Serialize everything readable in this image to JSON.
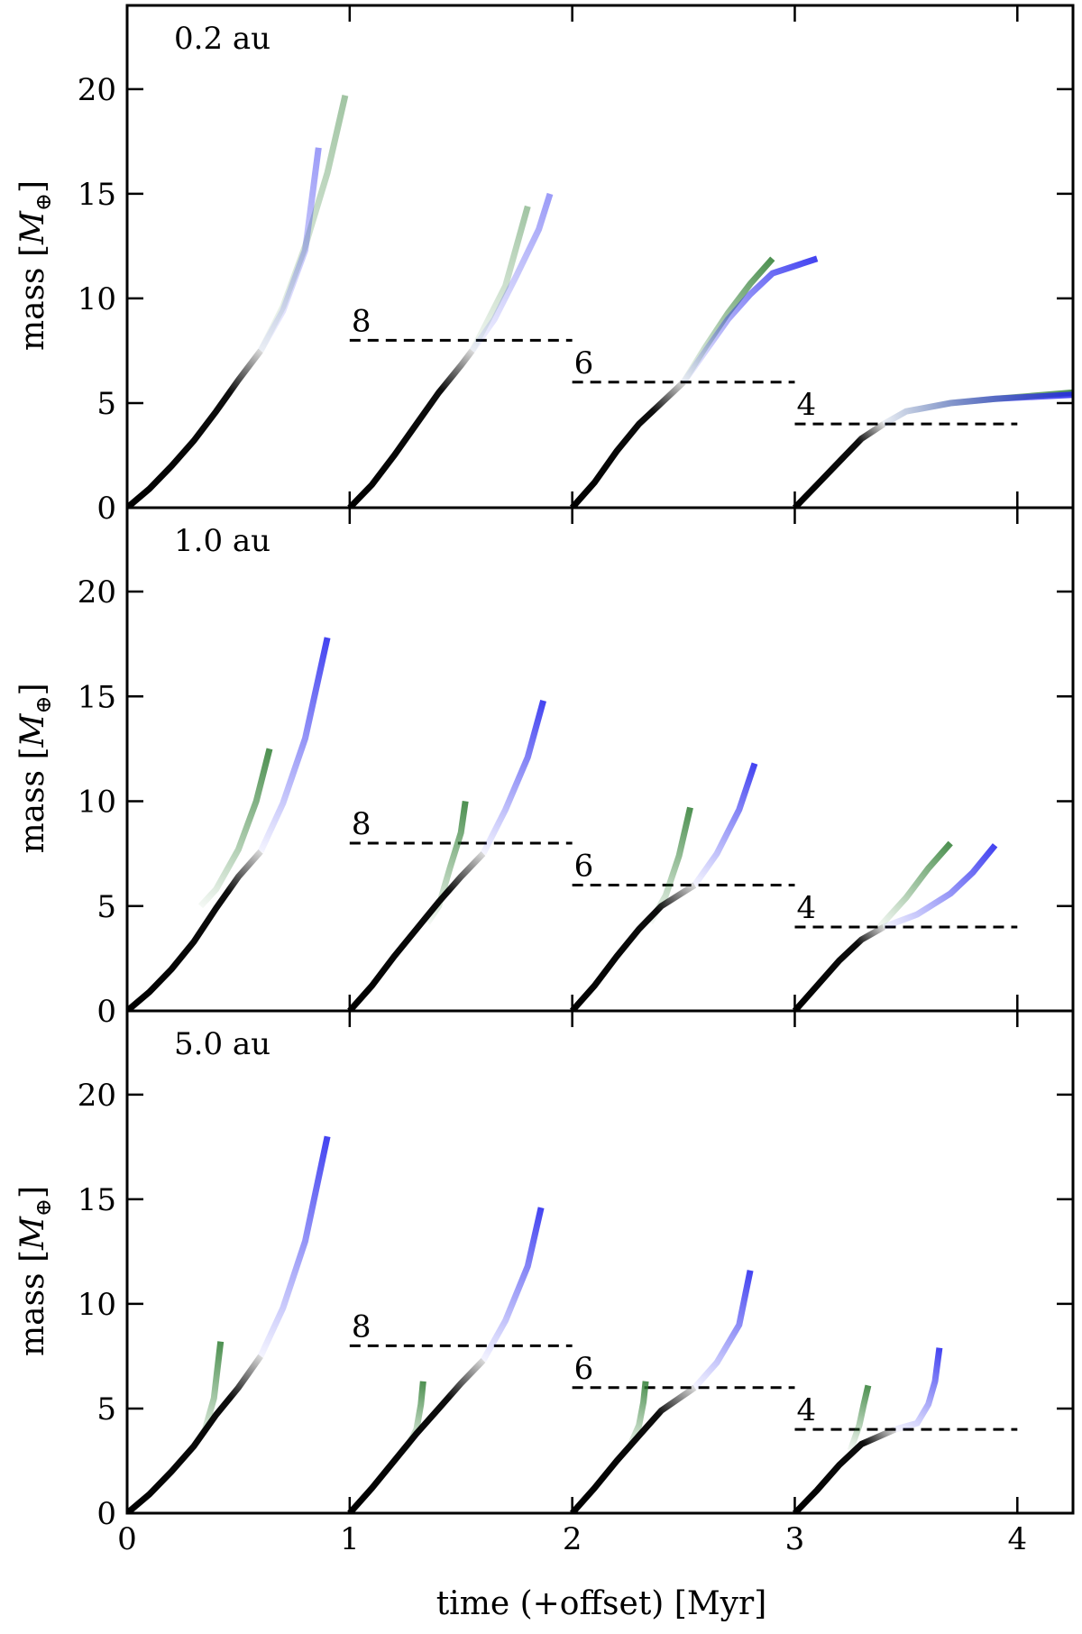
{
  "chart_data": {
    "type": "line",
    "xlabel": "time (+offset) [Myr]",
    "ylabel_prefix": "mass [",
    "ylabel_symbol": "M",
    "ylabel_subscript": "⊕",
    "ylabel_suffix": "]",
    "xlim": [
      0,
      4.25
    ],
    "ylim": [
      0,
      24
    ],
    "xticks": [
      "0",
      "1",
      "2",
      "3",
      "4"
    ],
    "yticks": [
      "0",
      "5",
      "10",
      "15",
      "20"
    ],
    "colors": {
      "core": "#000000",
      "green": "#2e7d32",
      "blue": "#2222ee",
      "threshold": "#000000"
    },
    "panels": [
      {
        "label": "0.2 au",
        "groups": [
          {
            "offset": 0,
            "threshold": null,
            "core": [
              [
                0,
                0
              ],
              [
                0.1,
                0.9
              ],
              [
                0.2,
                2.0
              ],
              [
                0.3,
                3.2
              ],
              [
                0.4,
                4.6
              ],
              [
                0.5,
                6.1
              ],
              [
                0.6,
                7.5
              ]
            ],
            "green": [
              [
                0.6,
                7.5
              ],
              [
                0.7,
                9.6
              ],
              [
                0.8,
                12.5
              ],
              [
                0.9,
                16.0
              ],
              [
                0.98,
                19.7
              ]
            ],
            "blue": [
              [
                0.6,
                7.5
              ],
              [
                0.7,
                9.4
              ],
              [
                0.8,
                12.3
              ],
              [
                0.86,
                17.2
              ]
            ]
          },
          {
            "offset": 1,
            "threshold": 8,
            "core": [
              [
                1.0,
                0
              ],
              [
                1.1,
                1.1
              ],
              [
                1.2,
                2.5
              ],
              [
                1.3,
                4.0
              ],
              [
                1.4,
                5.5
              ],
              [
                1.5,
                6.8
              ],
              [
                1.55,
                7.5
              ]
            ],
            "green": [
              [
                1.55,
                7.5
              ],
              [
                1.6,
                8.5
              ],
              [
                1.7,
                10.6
              ],
              [
                1.8,
                14.4
              ]
            ],
            "blue": [
              [
                1.55,
                7.5
              ],
              [
                1.65,
                9.0
              ],
              [
                1.75,
                11.1
              ],
              [
                1.85,
                13.3
              ],
              [
                1.9,
                15.0
              ]
            ]
          },
          {
            "offset": 2,
            "threshold": 6,
            "core": [
              [
                2.0,
                0
              ],
              [
                2.1,
                1.2
              ],
              [
                2.2,
                2.7
              ],
              [
                2.3,
                4.0
              ],
              [
                2.4,
                5.0
              ],
              [
                2.5,
                6.0
              ]
            ],
            "green": [
              [
                2.5,
                6.0
              ],
              [
                2.6,
                7.7
              ],
              [
                2.7,
                9.3
              ],
              [
                2.8,
                10.7
              ],
              [
                2.9,
                11.9
              ]
            ],
            "blue": [
              [
                2.5,
                6.0
              ],
              [
                2.6,
                7.5
              ],
              [
                2.7,
                9.0
              ],
              [
                2.8,
                10.2
              ],
              [
                2.9,
                11.2
              ],
              [
                3.1,
                11.9
              ]
            ]
          },
          {
            "offset": 3,
            "threshold": 4,
            "core": [
              [
                3.0,
                0
              ],
              [
                3.1,
                1.1
              ],
              [
                3.2,
                2.2
              ],
              [
                3.3,
                3.3
              ],
              [
                3.4,
                4.0
              ]
            ],
            "green": [
              [
                3.4,
                4.0
              ],
              [
                3.5,
                4.6
              ],
              [
                3.7,
                5.0
              ],
              [
                3.9,
                5.2
              ],
              [
                4.25,
                5.5
              ]
            ],
            "blue": [
              [
                3.4,
                4.0
              ],
              [
                3.5,
                4.6
              ],
              [
                3.7,
                5.0
              ],
              [
                3.9,
                5.2
              ],
              [
                4.25,
                5.4
              ]
            ]
          }
        ]
      },
      {
        "label": "1.0 au",
        "groups": [
          {
            "offset": 0,
            "threshold": null,
            "core": [
              [
                0,
                0
              ],
              [
                0.1,
                0.9
              ],
              [
                0.2,
                2.0
              ],
              [
                0.3,
                3.3
              ],
              [
                0.4,
                4.9
              ],
              [
                0.5,
                6.4
              ],
              [
                0.6,
                7.6
              ]
            ],
            "green": [
              [
                0.33,
                5.0
              ],
              [
                0.4,
                5.8
              ],
              [
                0.5,
                7.7
              ],
              [
                0.58,
                10.0
              ],
              [
                0.64,
                12.5
              ]
            ],
            "blue": [
              [
                0.6,
                7.6
              ],
              [
                0.7,
                9.9
              ],
              [
                0.8,
                13.0
              ],
              [
                0.9,
                17.8
              ]
            ]
          },
          {
            "offset": 1,
            "threshold": 8,
            "core": [
              [
                1.0,
                0
              ],
              [
                1.1,
                1.2
              ],
              [
                1.2,
                2.6
              ],
              [
                1.3,
                3.9
              ],
              [
                1.4,
                5.2
              ],
              [
                1.5,
                6.4
              ],
              [
                1.6,
                7.5
              ]
            ],
            "green": [
              [
                1.35,
                4.2
              ],
              [
                1.4,
                5.0
              ],
              [
                1.45,
                6.8
              ],
              [
                1.5,
                8.5
              ],
              [
                1.52,
                10.0
              ]
            ],
            "blue": [
              [
                1.6,
                7.5
              ],
              [
                1.7,
                9.6
              ],
              [
                1.8,
                12.1
              ],
              [
                1.87,
                14.8
              ]
            ]
          },
          {
            "offset": 2,
            "threshold": 6,
            "core": [
              [
                2.0,
                0
              ],
              [
                2.1,
                1.2
              ],
              [
                2.2,
                2.6
              ],
              [
                2.3,
                3.9
              ],
              [
                2.4,
                5.0
              ],
              [
                2.55,
                6.0
              ]
            ],
            "green": [
              [
                2.35,
                4.2
              ],
              [
                2.42,
                5.5
              ],
              [
                2.48,
                7.4
              ],
              [
                2.53,
                9.7
              ]
            ],
            "blue": [
              [
                2.55,
                6.0
              ],
              [
                2.65,
                7.5
              ],
              [
                2.75,
                9.6
              ],
              [
                2.82,
                11.8
              ]
            ]
          },
          {
            "offset": 3,
            "threshold": 4,
            "core": [
              [
                3.0,
                0
              ],
              [
                3.1,
                1.2
              ],
              [
                3.2,
                2.4
              ],
              [
                3.3,
                3.4
              ],
              [
                3.4,
                4.0
              ]
            ],
            "green": [
              [
                3.38,
                4.0
              ],
              [
                3.5,
                5.4
              ],
              [
                3.6,
                6.8
              ],
              [
                3.7,
                8.0
              ]
            ],
            "blue": [
              [
                3.4,
                4.0
              ],
              [
                3.55,
                4.6
              ],
              [
                3.7,
                5.6
              ],
              [
                3.8,
                6.6
              ],
              [
                3.9,
                7.9
              ]
            ]
          }
        ]
      },
      {
        "label": "5.0 au",
        "groups": [
          {
            "offset": 0,
            "threshold": null,
            "core": [
              [
                0,
                0
              ],
              [
                0.1,
                0.9
              ],
              [
                0.2,
                2.0
              ],
              [
                0.3,
                3.2
              ],
              [
                0.4,
                4.7
              ],
              [
                0.5,
                6.0
              ],
              [
                0.6,
                7.5
              ]
            ],
            "green": [
              [
                0.3,
                3.2
              ],
              [
                0.35,
                4.0
              ],
              [
                0.39,
                5.5
              ],
              [
                0.42,
                8.2
              ]
            ],
            "blue": [
              [
                0.6,
                7.5
              ],
              [
                0.7,
                9.8
              ],
              [
                0.8,
                13.0
              ],
              [
                0.9,
                18.0
              ]
            ]
          },
          {
            "offset": 1,
            "threshold": 8,
            "core": [
              [
                1.0,
                0
              ],
              [
                1.1,
                1.2
              ],
              [
                1.2,
                2.5
              ],
              [
                1.3,
                3.8
              ],
              [
                1.4,
                5.0
              ],
              [
                1.5,
                6.2
              ],
              [
                1.6,
                7.3
              ]
            ],
            "green": [
              [
                1.25,
                3.0
              ],
              [
                1.3,
                4.0
              ],
              [
                1.32,
                5.2
              ],
              [
                1.33,
                6.3
              ]
            ],
            "blue": [
              [
                1.6,
                7.3
              ],
              [
                1.7,
                9.2
              ],
              [
                1.8,
                11.8
              ],
              [
                1.86,
                14.6
              ]
            ]
          },
          {
            "offset": 2,
            "threshold": 6,
            "core": [
              [
                2.0,
                0
              ],
              [
                2.1,
                1.2
              ],
              [
                2.2,
                2.5
              ],
              [
                2.3,
                3.7
              ],
              [
                2.4,
                4.9
              ],
              [
                2.55,
                6.0
              ]
            ],
            "green": [
              [
                2.25,
                3.0
              ],
              [
                2.3,
                4.2
              ],
              [
                2.32,
                5.3
              ],
              [
                2.33,
                6.3
              ]
            ],
            "blue": [
              [
                2.55,
                6.0
              ],
              [
                2.65,
                7.2
              ],
              [
                2.75,
                9.0
              ],
              [
                2.8,
                11.6
              ]
            ]
          },
          {
            "offset": 3,
            "threshold": 4,
            "core": [
              [
                3.0,
                0
              ],
              [
                3.1,
                1.1
              ],
              [
                3.2,
                2.3
              ],
              [
                3.3,
                3.3
              ],
              [
                3.45,
                4.0
              ]
            ],
            "green": [
              [
                3.25,
                3.0
              ],
              [
                3.29,
                4.2
              ],
              [
                3.31,
                5.2
              ],
              [
                3.33,
                6.1
              ]
            ],
            "blue": [
              [
                3.45,
                4.0
              ],
              [
                3.55,
                4.3
              ],
              [
                3.6,
                5.2
              ],
              [
                3.63,
                6.3
              ],
              [
                3.65,
                7.9
              ]
            ]
          }
        ]
      }
    ]
  }
}
